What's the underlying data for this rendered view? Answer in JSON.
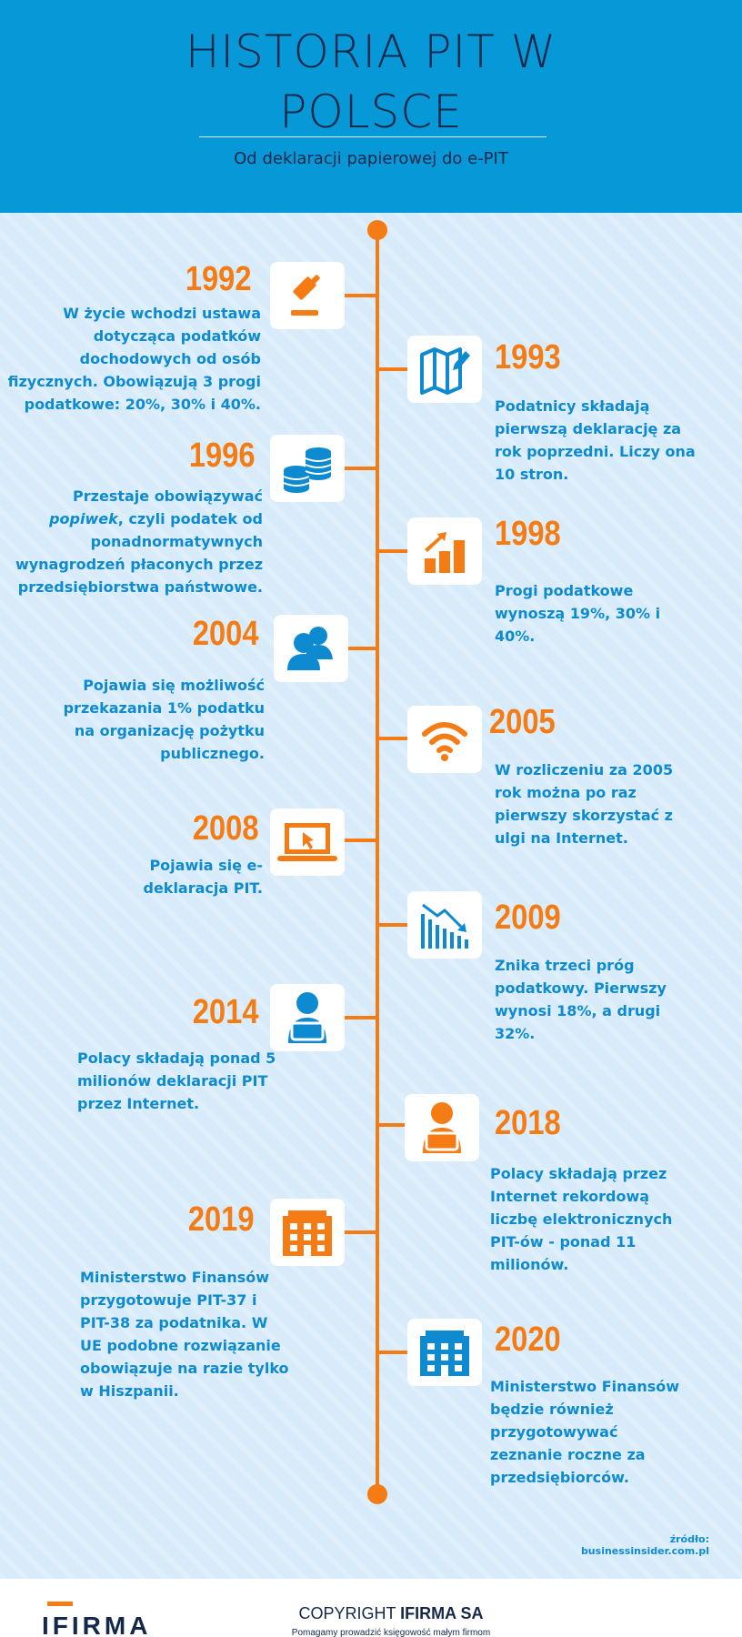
{
  "header": {
    "title": "HISTORIA PIT W POLSCE",
    "subtitle": "Od deklaracji papierowej do e-PIT"
  },
  "colors": {
    "header_bg": "#0798d8",
    "accent": "#f57c14",
    "text_blue": "#0e8bd0",
    "bg": "#d8ebfa"
  },
  "events": [
    {
      "year": "1992",
      "side": "left",
      "icon": "gavel-icon",
      "icon_color": "orange",
      "lines": [
        "W życie wchodzi ustawa",
        "dotycząca podatków",
        "dochodowych od osób",
        "fizycznych. Obowiązują 3 progi",
        "podatkowe: 20%, 30% i 40%."
      ]
    },
    {
      "year": "1993",
      "side": "right",
      "icon": "map-pencil-icon",
      "icon_color": "blue",
      "lines": [
        "Podatnicy składają",
        "pierwszą deklarację za",
        "rok poprzedni. Liczy ona",
        "10 stron."
      ]
    },
    {
      "year": "1996",
      "side": "left",
      "icon": "coins-icon",
      "icon_color": "blue",
      "lines_italic_prefix": "popiwek",
      "lines": [
        "Przestaje obowiązywać",
        "popiwek, czyli podatek od",
        "ponadnormatywnych",
        "wynagrodzeń płaconych przez",
        "przedsiębiorstwa państwowe."
      ]
    },
    {
      "year": "1998",
      "side": "right",
      "icon": "growth-chart-icon",
      "icon_color": "orange",
      "lines": [
        "Progi podatkowe",
        "wynoszą 19%, 30% i",
        "40%."
      ]
    },
    {
      "year": "2004",
      "side": "left",
      "icon": "users-icon",
      "icon_color": "blue",
      "lines": [
        "Pojawia się możliwość",
        "przekazania 1% podatku",
        "na organizację pożytku",
        "publicznego."
      ]
    },
    {
      "year": "2005",
      "side": "right",
      "icon": "wifi-icon",
      "icon_color": "orange",
      "lines": [
        "W rozliczeniu za 2005",
        "rok można po raz",
        "pierwszy skorzystać z",
        "ulgi na Internet."
      ]
    },
    {
      "year": "2008",
      "side": "left",
      "icon": "laptop-icon",
      "icon_color": "orange",
      "lines": [
        "Pojawia się e-",
        "deklaracja PIT."
      ]
    },
    {
      "year": "2009",
      "side": "right",
      "icon": "declining-chart-icon",
      "icon_color": "blue",
      "lines": [
        "Znika trzeci próg",
        "podatkowy. Pierwszy",
        "wynosi 18%, a drugi",
        "32%."
      ]
    },
    {
      "year": "2014",
      "side": "left",
      "icon": "person-laptop-icon",
      "icon_color": "blue",
      "lines": [
        "Polacy składają ponad 5",
        "milionów deklaracji PIT",
        "przez Internet."
      ]
    },
    {
      "year": "2018",
      "side": "right",
      "icon": "person-laptop-icon",
      "icon_color": "orange",
      "lines": [
        "Polacy składają przez",
        "Internet rekordową",
        "liczbę elektronicznych",
        "PIT-ów - ponad 11",
        "milionów."
      ]
    },
    {
      "year": "2019",
      "side": "left",
      "icon": "office-building-icon",
      "icon_color": "orange",
      "lines": [
        "Ministerstwo Finansów",
        "przygotowuje PIT-37 i",
        "PIT-38 za podatnika. W",
        "UE podobne rozwiązanie",
        "obowiązuje na razie tylko",
        "w Hiszpanii."
      ]
    },
    {
      "year": "2020",
      "side": "right",
      "icon": "office-building-icon",
      "icon_color": "blue",
      "lines": [
        "Ministerstwo Finansów",
        "będzie również",
        "przygotowywać",
        "zeznanie roczne za",
        "przedsiębiorców."
      ]
    }
  ],
  "source": "źródło:  businessinsider.com.pl",
  "footer": {
    "logo": "IFIRMA",
    "copyright_prefix": "COPYRIGHT ",
    "copyright_brand": "IFIRMA SA",
    "tagline": "Pomagamy prowadzić księgowość małym firmom"
  }
}
